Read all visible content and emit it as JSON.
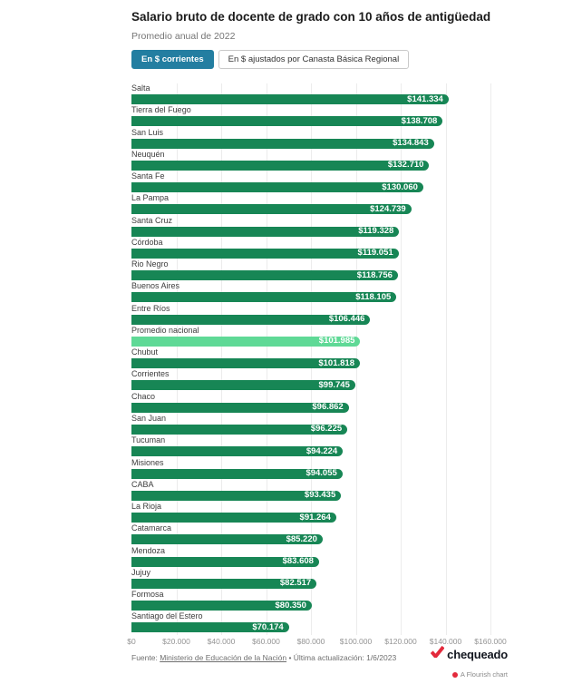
{
  "header": {
    "title": "Salario bruto de docente de grado con 10 años de antigüedad",
    "subtitle": "Promedio anual de 2022"
  },
  "tabs": [
    {
      "label": "En $ corrientes",
      "active": true
    },
    {
      "label": "En $ ajustados por Canasta Básica Regional",
      "active": false
    }
  ],
  "chart_data": {
    "type": "bar",
    "orientation": "horizontal",
    "title": "Salario bruto de docente de grado con 10 años de antigüedad",
    "subtitle": "Promedio anual de 2022",
    "categories": [
      "Salta",
      "Tierra del Fuego",
      "San Luis",
      "Neuquén",
      "Santa Fe",
      "La Pampa",
      "Santa Cruz",
      "Córdoba",
      "Rio Negro",
      "Buenos Aires",
      "Entre Ríos",
      "Promedio nacional",
      "Chubut",
      "Corrientes",
      "Chaco",
      "San Juan",
      "Tucuman",
      "Misiones",
      "CABA",
      "La Rioja",
      "Catamarca",
      "Mendoza",
      "Jujuy",
      "Formosa",
      "Santiago del Estero"
    ],
    "values": [
      141334,
      138708,
      134843,
      132710,
      130060,
      124739,
      119328,
      119051,
      118756,
      118105,
      106446,
      101985,
      101818,
      99745,
      96862,
      96225,
      94224,
      94055,
      93435,
      91264,
      85220,
      83608,
      82517,
      80350,
      70174
    ],
    "value_labels": [
      "$141.334",
      "$138.708",
      "$134.843",
      "$132.710",
      "$130.060",
      "$124.739",
      "$119.328",
      "$119.051",
      "$118.756",
      "$118.105",
      "$106.446",
      "$101.985",
      "$101.818",
      "$99.745",
      "$96.862",
      "$96.225",
      "$94.224",
      "$94.055",
      "$93.435",
      "$91.264",
      "$85.220",
      "$83.608",
      "$82.517",
      "$80.350",
      "$70.174"
    ],
    "highlight_category": "Promedio nacional",
    "xlim": [
      0,
      160000
    ],
    "x_ticks": [
      "$0",
      "$20.000",
      "$40.000",
      "$60.000",
      "$80.000",
      "$100.000",
      "$120.000",
      "$140.000",
      "$160.000"
    ],
    "grid": true,
    "legend": "none",
    "colors": {
      "bar": "#178655",
      "highlight": "#5fd996",
      "accent": "#237ea1",
      "brand_red": "#e3293b"
    }
  },
  "footer": {
    "fuente_label": "Fuente:",
    "source_link": "Ministerio de Educación de la Nación",
    "updated": "• Última actualización: 1/6/2023",
    "brand": "chequeado",
    "flourish_label": "A Flourish chart"
  }
}
